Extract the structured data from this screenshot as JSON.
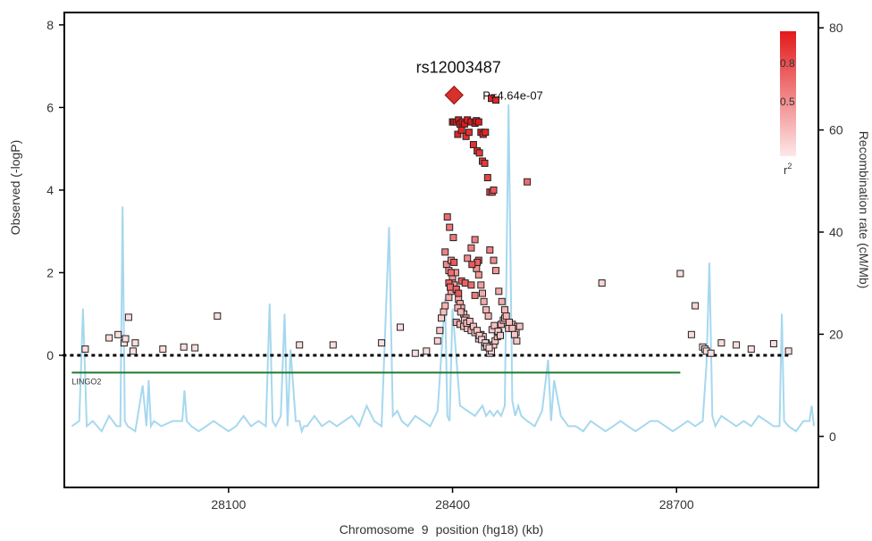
{
  "chart_data": {
    "type": "scatter",
    "title": "",
    "xlabel_prefix": "Chromosome",
    "xlabel_chr": "9",
    "xlabel_suffix": "position (hg18) (kb)",
    "ylabel_left": "Observed (-logP)",
    "ylabel_right": "Recombination rate (cM/Mb)",
    "xlim": [
      27880,
      28890
    ],
    "ylim": [
      -3.2,
      8.3
    ],
    "y2lim": [
      -10,
      83
    ],
    "x_ticks": [
      28100,
      28400,
      28700
    ],
    "y_ticks": [
      0,
      2,
      4,
      6,
      8
    ],
    "y2_ticks": [
      0,
      20,
      40,
      60,
      80
    ],
    "grid": false,
    "lead_snp": {
      "name": "rs12003487",
      "x": 28402,
      "y": 6.3,
      "label": "P=4.64e-07",
      "color": "#d8302c"
    },
    "gene": {
      "name": "LINGO2",
      "start": 27890,
      "end": 28705,
      "y": -0.42,
      "color": "#1e7a2e"
    },
    "legend": {
      "title": "r",
      "title_sup": "2",
      "ticks": [
        0.8,
        0.5
      ],
      "placement": "top-right",
      "color_high": "#e31a1c",
      "color_low": "#fde8e8"
    },
    "recombination": {
      "color": "#a6d8ee",
      "x": [
        27890,
        27900,
        27905,
        27910,
        27918,
        27930,
        27940,
        27950,
        27955,
        27958,
        27961,
        27965,
        27975,
        27985,
        27990,
        27993,
        27996,
        28000,
        28010,
        28025,
        28038,
        28041,
        28044,
        28050,
        28060,
        28070,
        28080,
        28090,
        28100,
        28110,
        28120,
        28130,
        28140,
        28150,
        28155,
        28159,
        28163,
        28170,
        28175,
        28179,
        28183,
        28190,
        28195,
        28198,
        28201,
        28205,
        28215,
        28225,
        28235,
        28245,
        28255,
        28265,
        28275,
        28285,
        28295,
        28305,
        28315,
        28320,
        28326,
        28332,
        28340,
        28350,
        28360,
        28370,
        28380,
        28390,
        28393,
        28396,
        28400,
        28410,
        28420,
        28430,
        28440,
        28445,
        28450,
        28455,
        28460,
        28465,
        28470,
        28475,
        28480,
        28484,
        28488,
        28492,
        28500,
        28510,
        28520,
        28528,
        28532,
        28536,
        28545,
        28555,
        28565,
        28575,
        28585,
        28595,
        28605,
        28615,
        28625,
        28635,
        28645,
        28655,
        28665,
        28675,
        28685,
        28695,
        28705,
        28715,
        28725,
        28735,
        28740,
        28744,
        28748,
        28752,
        28756,
        28760,
        28770,
        28780,
        28790,
        28800,
        28810,
        28820,
        28830,
        28838,
        28841,
        28844,
        28850,
        28860,
        28870,
        28878,
        28881,
        28884
      ],
      "y": [
        2,
        3,
        25,
        2,
        3,
        1,
        4,
        2,
        2,
        45,
        3,
        2,
        1,
        10,
        2,
        11,
        2,
        3,
        2,
        3,
        3,
        9,
        3,
        2,
        1,
        2,
        3,
        2,
        1,
        2,
        4,
        2,
        3,
        2,
        26,
        3,
        2,
        4,
        24,
        2,
        17,
        3,
        3,
        1,
        2,
        2,
        4,
        2,
        3,
        2,
        3,
        4,
        2,
        6,
        3,
        2,
        41,
        4,
        5,
        3,
        2,
        4,
        3,
        2,
        5,
        27,
        4,
        3,
        25,
        6,
        5,
        4,
        6,
        4,
        5,
        4,
        5,
        4,
        6,
        65,
        7,
        4,
        6,
        4,
        3,
        2,
        5,
        15,
        3,
        11,
        4,
        2,
        2,
        1,
        3,
        2,
        1,
        2,
        3,
        2,
        1,
        2,
        3,
        3,
        2,
        1,
        2,
        3,
        2,
        3,
        14,
        34,
        4,
        2,
        3,
        4,
        3,
        2,
        3,
        2,
        4,
        3,
        2,
        2,
        24,
        3,
        2,
        1,
        3,
        3,
        6,
        2
      ]
    },
    "series": [
      {
        "x": [
          27908,
          27940,
          27952,
          27960,
          27962,
          27966,
          27972,
          27975,
          28085,
          28055,
          28012,
          28040,
          28195,
          28240,
          28305,
          28330,
          28350,
          28365,
          28380,
          28383,
          28385,
          28388,
          28390,
          28395,
          28398,
          28400,
          28405,
          28410,
          28415,
          28420,
          28425,
          28430,
          28435,
          28438,
          28441,
          28443,
          28445,
          28450,
          28452,
          28455,
          28457,
          28460,
          28462,
          28465,
          28468,
          28470,
          28475,
          28480,
          28485,
          28487,
          28490,
          28600,
          28705,
          28720,
          28725,
          28735,
          28738,
          28740,
          28746,
          28760,
          28780,
          28800,
          28830,
          28850,
          28390,
          28392,
          28395,
          28398,
          28400,
          28402,
          28405,
          28408,
          28410,
          28412,
          28415,
          28418,
          28420,
          28425,
          28430,
          28432,
          28435,
          28438,
          28440,
          28442,
          28445,
          28448,
          28450,
          28455,
          28458,
          28462,
          28466,
          28470,
          28472,
          28476,
          28480,
          28483,
          28486,
          28393,
          28396,
          28401,
          28404,
          28407,
          28411,
          28416,
          28419,
          28423,
          28428,
          28433,
          28436,
          28439,
          28444,
          28446,
          28449,
          28453,
          28456,
          28461,
          28464
        ],
        "y": [
          0.15,
          0.42,
          0.5,
          0.3,
          0.4,
          0.92,
          0.1,
          0.3,
          0.95,
          0.18,
          0.15,
          0.2,
          0.25,
          0.25,
          0.3,
          0.68,
          0.05,
          0.1,
          0.35,
          0.6,
          0.9,
          1.05,
          1.2,
          1.4,
          1.55,
          1.8,
          0.8,
          0.75,
          0.7,
          0.65,
          0.6,
          0.55,
          0.4,
          0.5,
          0.45,
          0.2,
          0.3,
          0.05,
          0.1,
          0.25,
          0.35,
          0.45,
          0.55,
          0.75,
          0.85,
          0.9,
          0.65,
          0.75,
          0.55,
          0.7,
          0.7,
          1.75,
          1.98,
          0.5,
          1.2,
          0.2,
          0.15,
          0.1,
          0.05,
          0.3,
          0.25,
          0.15,
          0.28,
          0.1,
          2.5,
          2.2,
          2.05,
          2.3,
          1.9,
          1.7,
          1.6,
          1.35,
          1.25,
          1.15,
          1.0,
          0.9,
          2.35,
          2.6,
          2.8,
          2.1,
          1.95,
          1.7,
          1.5,
          1.3,
          1.1,
          0.95,
          2.55,
          2.3,
          2.05,
          1.55,
          1.3,
          1.1,
          0.95,
          0.8,
          0.65,
          0.5,
          0.35,
          3.35,
          3.1,
          2.85,
          2.0,
          1.15,
          1.05,
          0.85,
          0.78,
          0.82,
          0.7,
          0.6,
          0.48,
          0.38,
          0.3,
          0.22,
          0.18,
          0.62,
          0.72,
          0.58,
          0.48
        ],
        "r2": [
          0.05,
          0.05,
          0.05,
          0.05,
          0.05,
          0.05,
          0.05,
          0.05,
          0.05,
          0.05,
          0.05,
          0.05,
          0.05,
          0.05,
          0.05,
          0.05,
          0.05,
          0.05,
          0.1,
          0.15,
          0.15,
          0.2,
          0.25,
          0.3,
          0.35,
          0.45,
          0.3,
          0.25,
          0.25,
          0.2,
          0.2,
          0.2,
          0.15,
          0.2,
          0.15,
          0.1,
          0.15,
          0.05,
          0.1,
          0.15,
          0.15,
          0.2,
          0.2,
          0.25,
          0.25,
          0.25,
          0.2,
          0.25,
          0.15,
          0.2,
          0.2,
          0.1,
          0.05,
          0.05,
          0.1,
          0.05,
          0.05,
          0.05,
          0.05,
          0.05,
          0.05,
          0.05,
          0.05,
          0.05,
          0.5,
          0.45,
          0.4,
          0.45,
          0.4,
          0.35,
          0.35,
          0.3,
          0.3,
          0.3,
          0.25,
          0.25,
          0.45,
          0.5,
          0.5,
          0.4,
          0.4,
          0.35,
          0.3,
          0.3,
          0.25,
          0.25,
          0.5,
          0.45,
          0.4,
          0.3,
          0.3,
          0.25,
          0.25,
          0.2,
          0.2,
          0.15,
          0.15,
          0.6,
          0.55,
          0.55,
          0.4,
          0.25,
          0.25,
          0.2,
          0.2,
          0.2,
          0.2,
          0.15,
          0.15,
          0.1,
          0.1,
          0.1,
          0.1,
          0.15,
          0.2,
          0.15,
          0.15
        ]
      },
      {
        "x": [
          28400,
          28402,
          28405,
          28408,
          28410,
          28413,
          28416,
          28420,
          28425,
          28430,
          28432,
          28435,
          28438,
          28441,
          28444,
          28407,
          28412,
          28418,
          28422,
          28428,
          28433,
          28436,
          28440,
          28443,
          28447,
          28450,
          28453,
          28455,
          28452,
          28458,
          28500,
          28435,
          28433,
          28426,
          28402,
          28398,
          28395,
          28397,
          28405,
          28408,
          28412,
          28417,
          28425,
          28430
        ],
        "y": [
          5.65,
          5.65,
          5.65,
          5.7,
          5.6,
          5.65,
          5.6,
          5.7,
          5.65,
          5.62,
          5.68,
          5.65,
          5.4,
          5.35,
          5.4,
          5.35,
          5.45,
          5.3,
          5.4,
          5.1,
          4.95,
          4.9,
          4.7,
          4.65,
          4.3,
          3.95,
          3.95,
          4.0,
          6.22,
          6.18,
          4.2,
          2.3,
          2.25,
          2.2,
          2.25,
          2.0,
          1.75,
          1.65,
          1.6,
          1.5,
          1.8,
          1.75,
          1.7,
          1.45
        ],
        "r2": [
          1,
          1,
          1,
          1,
          1,
          1,
          1,
          1,
          1,
          1,
          1,
          1,
          1,
          0.95,
          0.95,
          0.95,
          0.95,
          0.9,
          0.9,
          0.9,
          0.9,
          0.85,
          0.85,
          0.85,
          0.8,
          0.75,
          0.7,
          0.7,
          0.95,
          0.95,
          0.6,
          0.7,
          0.65,
          0.7,
          0.7,
          0.6,
          0.65,
          0.6,
          0.65,
          0.7,
          0.7,
          0.65,
          0.6,
          0.55
        ]
      }
    ]
  }
}
